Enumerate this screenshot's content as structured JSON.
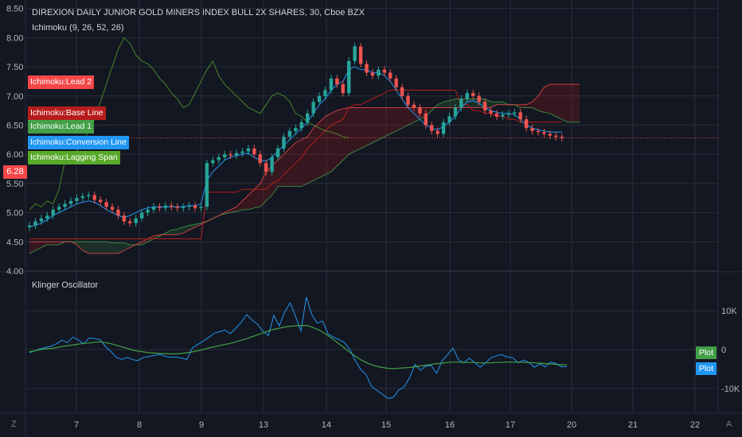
{
  "header": {
    "title": "DIREXION DAILY JUNIOR GOLD MINERS INDEX BULL 2X SHARES, 30, Cboe BZX",
    "indicator": "Ichimoku (9, 26, 52, 26)"
  },
  "legend": {
    "lead2": "Ichimoku:Lead 2",
    "base_line": "Ichimoku:Base Line",
    "lead1": "Ichimoku:Lead 1",
    "conversion_line": "Ichimoku:Conversion Line",
    "lagging_span": "Ichimoku:Lagging Span"
  },
  "last_price_tag": "6.28",
  "oscillator": {
    "title": "Klinger Oscillator",
    "plot1_label": "Plot",
    "plot2_label": "Plot"
  },
  "corners": {
    "bottom_left": "Z",
    "bottom_right": "A"
  },
  "colors": {
    "background": "#131722",
    "up": "#26a69a",
    "down": "#ef5350",
    "conversion": "#2196f3",
    "base": "#b71c1c",
    "lead1": "#43a047",
    "lead2": "#f44848",
    "lagging": "#58a92a"
  },
  "chart_data": [
    {
      "type": "candlestick",
      "title": "DIREXION DAILY JUNIOR GOLD MINERS INDEX BULL 2X SHARES, 30, Cboe BZX",
      "x_ticks": [
        "7",
        "8",
        "9",
        "13",
        "14",
        "15",
        "16",
        "17",
        "20",
        "21",
        "22"
      ],
      "y_ticks": [
        "8.50",
        "8.00",
        "7.50",
        "7.00",
        "6.50",
        "6.00",
        "5.50",
        "5.00",
        "4.50",
        "4.00"
      ],
      "ylim": [
        4.0,
        8.5
      ],
      "last_price": 6.28,
      "close": [
        4.78,
        4.85,
        4.9,
        4.95,
        5.05,
        5.1,
        5.15,
        5.2,
        5.25,
        5.28,
        5.3,
        5.22,
        5.18,
        5.1,
        5.05,
        4.95,
        4.85,
        4.82,
        4.9,
        5.0,
        5.05,
        5.1,
        5.08,
        5.12,
        5.1,
        5.08,
        5.1,
        5.12,
        5.08,
        5.1,
        5.85,
        5.9,
        5.95,
        6.0,
        5.98,
        6.02,
        6.05,
        6.1,
        6.0,
        5.85,
        5.7,
        5.95,
        6.1,
        6.3,
        6.4,
        6.45,
        6.55,
        6.7,
        6.9,
        7.0,
        7.1,
        7.3,
        7.2,
        7.05,
        7.6,
        7.85,
        7.55,
        7.4,
        7.35,
        7.45,
        7.4,
        7.3,
        7.15,
        7.0,
        6.85,
        6.8,
        6.7,
        6.5,
        6.4,
        6.35,
        6.55,
        6.65,
        6.8,
        6.95,
        7.05,
        7.0,
        6.9,
        6.75,
        6.7,
        6.65,
        6.68,
        6.7,
        6.72,
        6.6,
        6.45,
        6.4,
        6.38,
        6.35,
        6.32,
        6.3,
        6.28
      ],
      "conversion_line": [
        4.75,
        4.78,
        4.82,
        4.88,
        4.95,
        5.0,
        5.05,
        5.1,
        5.15,
        5.18,
        5.2,
        5.18,
        5.12,
        5.05,
        5.0,
        4.95,
        4.92,
        4.95,
        5.0,
        5.05,
        5.08,
        5.1,
        5.1,
        5.1,
        5.1,
        5.1,
        5.1,
        5.12,
        5.12,
        5.15,
        5.55,
        5.7,
        5.8,
        5.9,
        5.95,
        5.98,
        6.0,
        6.02,
        5.95,
        5.9,
        5.88,
        5.95,
        6.05,
        6.15,
        6.25,
        6.35,
        6.45,
        6.55,
        6.7,
        6.85,
        6.95,
        7.1,
        7.2,
        7.25,
        7.45,
        7.5,
        7.45,
        7.45,
        7.4,
        7.4,
        7.35,
        7.25,
        7.1,
        6.95,
        6.8,
        6.7,
        6.6,
        6.5,
        6.45,
        6.42,
        6.48,
        6.55,
        6.65,
        6.8,
        6.9,
        6.92,
        6.88,
        6.8,
        6.75,
        6.72,
        6.7,
        6.7,
        6.68,
        6.6,
        6.5,
        6.45,
        6.42,
        6.4,
        6.38,
        6.38,
        6.38
      ],
      "base_line": [
        4.55,
        4.55,
        4.55,
        4.55,
        4.55,
        4.55,
        4.55,
        4.55,
        4.55,
        4.55,
        4.55,
        4.55,
        4.55,
        4.55,
        4.55,
        4.55,
        4.55,
        4.55,
        4.55,
        4.55,
        4.55,
        4.55,
        4.55,
        4.55,
        4.55,
        4.55,
        4.55,
        4.55,
        4.55,
        4.55,
        5.35,
        5.35,
        5.35,
        5.35,
        5.35,
        5.35,
        5.4,
        5.4,
        5.4,
        5.4,
        5.4,
        5.5,
        5.55,
        5.65,
        5.75,
        5.85,
        5.95,
        6.1,
        6.2,
        6.3,
        6.4,
        6.5,
        6.55,
        6.6,
        6.8,
        6.85,
        6.85,
        6.9,
        6.95,
        7.0,
        7.05,
        7.1,
        7.1,
        7.1,
        7.1,
        7.1,
        7.1,
        7.1,
        7.1,
        7.1,
        7.1,
        7.1,
        7.1,
        6.85,
        6.85,
        6.75,
        6.75,
        6.7,
        6.7,
        6.65,
        6.65,
        6.6,
        6.6,
        6.55,
        6.55,
        6.55,
        6.55,
        6.55,
        6.55,
        6.55,
        6.55
      ],
      "lead1": [
        4.3,
        4.35,
        4.4,
        4.45,
        4.45,
        4.45,
        4.5,
        4.5,
        4.5,
        4.5,
        4.5,
        4.5,
        4.5,
        4.5,
        4.48,
        4.48,
        4.48,
        4.45,
        4.45,
        4.45,
        4.5,
        4.55,
        4.6,
        4.65,
        4.7,
        4.72,
        4.75,
        4.78,
        4.8,
        4.82,
        4.85,
        4.9,
        4.95,
        4.98,
        5.0,
        5.02,
        5.05,
        5.05,
        5.08,
        5.1,
        5.2,
        5.3,
        5.45,
        5.45,
        5.45,
        5.45,
        5.45,
        5.5,
        5.55,
        5.6,
        5.65,
        5.7,
        5.8,
        5.9,
        6.0,
        6.05,
        6.1,
        6.15,
        6.2,
        6.25,
        6.3,
        6.35,
        6.4,
        6.45,
        6.5,
        6.55,
        6.6,
        6.65,
        6.75,
        6.85,
        6.9,
        6.92,
        6.95,
        6.95,
        6.95,
        6.95,
        6.95,
        6.95,
        6.9,
        6.9,
        6.9,
        6.85,
        6.85,
        6.8,
        6.8,
        6.8,
        6.75,
        6.72,
        6.7,
        6.65,
        6.6,
        6.55,
        6.55,
        6.55
      ],
      "lead2": [
        4.5,
        4.5,
        4.5,
        4.5,
        4.5,
        4.5,
        4.5,
        4.5,
        4.45,
        4.35,
        4.3,
        4.3,
        4.3,
        4.3,
        4.3,
        4.3,
        4.35,
        4.4,
        4.45,
        4.5,
        4.55,
        4.6,
        4.62,
        4.62,
        4.62,
        4.62,
        4.65,
        4.7,
        4.75,
        4.8,
        4.85,
        4.9,
        4.95,
        5.0,
        5.05,
        5.1,
        5.2,
        5.3,
        5.4,
        5.5,
        5.7,
        5.8,
        5.9,
        6.0,
        6.1,
        6.2,
        6.25,
        6.3,
        6.45,
        6.55,
        6.65,
        6.7,
        6.75,
        6.78,
        6.8,
        6.8,
        6.8,
        6.8,
        6.8,
        6.8,
        6.8,
        6.8,
        6.8,
        6.8,
        6.8,
        6.8,
        6.8,
        6.8,
        6.8,
        6.8,
        6.8,
        6.8,
        6.8,
        6.8,
        6.8,
        6.8,
        6.8,
        6.8,
        6.8,
        6.85,
        6.85,
        6.85,
        6.85,
        6.85,
        6.85,
        6.9,
        7.0,
        7.15,
        7.2,
        7.2,
        7.2,
        7.2,
        7.2,
        7.2
      ],
      "lagging_span": [
        5.05,
        5.15,
        5.1,
        5.2,
        5.15,
        5.4,
        5.9,
        5.95,
        6.05,
        6.2,
        6.4,
        6.6,
        6.9,
        7.2,
        7.5,
        7.8,
        8.0,
        7.9,
        7.7,
        7.6,
        7.55,
        7.45,
        7.3,
        7.2,
        7.05,
        6.95,
        6.8,
        6.85,
        7.05,
        7.25,
        7.45,
        7.6,
        7.35,
        7.2,
        7.1,
        7.0,
        6.9,
        6.8,
        6.75,
        6.7,
        6.85,
        7.0,
        7.05,
        7.0,
        6.9,
        6.7,
        6.65,
        6.55,
        6.5,
        6.45,
        6.4,
        6.38,
        6.35,
        6.3,
        6.28
      ]
    },
    {
      "type": "line",
      "title": "Klinger Oscillator",
      "y_ticks": [
        "10K",
        "0",
        "-10K"
      ],
      "ylim": [
        -14000,
        18000
      ],
      "series": [
        {
          "name": "Plot",
          "values": [
            -800,
            -300,
            200,
            600,
            900,
            1500,
            2400,
            1800,
            3200,
            2500,
            1500,
            3000,
            2800,
            2600,
            800,
            -500,
            -2000,
            -2500,
            -2000,
            -2600,
            -2800,
            -2000,
            -1800,
            -1500,
            -1200,
            -1700,
            -2000,
            -1900,
            -2200,
            -2500,
            400,
            1300,
            2200,
            3100,
            4200,
            4600,
            5000,
            4100,
            5500,
            7000,
            9000,
            7600,
            6500,
            4700,
            3600,
            8800,
            6100,
            9600,
            12000,
            8600,
            4800,
            13500,
            9000,
            6800,
            7300,
            4000,
            3200,
            2600,
            1800,
            100,
            -2800,
            -5100,
            -6400,
            -9500,
            -10500,
            -11500,
            -12500,
            -12300,
            -10400,
            -9600,
            -7300,
            -3800,
            -5300,
            -4200,
            -4100,
            -6100,
            -2900,
            -1300,
            400,
            -2600,
            -3400,
            -2200,
            -3300,
            -4500,
            -3400,
            -2100,
            -1600,
            -1300,
            -1900,
            -2100,
            -3400,
            -2700,
            -3300,
            -4500,
            -3700,
            -4400,
            -3200,
            -3600,
            -4400,
            -4400
          ]
        },
        {
          "name": "Plot",
          "values": [
            -600,
            -300,
            0,
            200,
            300,
            500,
            800,
            1000,
            1200,
            1400,
            1600,
            1700,
            1900,
            2000,
            1800,
            1500,
            1100,
            700,
            300,
            -100,
            -400,
            -600,
            -800,
            -900,
            -1000,
            -1000,
            -1100,
            -1100,
            -1000,
            -800,
            -600,
            -300,
            0,
            400,
            700,
            1000,
            1300,
            1600,
            2000,
            2400,
            2800,
            3300,
            3800,
            4300,
            4800,
            5200,
            5500,
            5800,
            6000,
            6100,
            6200,
            6200,
            5800,
            5200,
            4500,
            3600,
            2600,
            1500,
            400,
            -700,
            -1700,
            -2600,
            -3300,
            -3900,
            -4300,
            -4600,
            -4800,
            -4900,
            -4800,
            -4700,
            -4600,
            -4400,
            -4200,
            -4000,
            -3800,
            -3600,
            -3500,
            -3300,
            -3200,
            -3200,
            -3300,
            -3300,
            -3300,
            -3400,
            -3400,
            -3400,
            -3300,
            -3300,
            -3200,
            -3200,
            -3200,
            -3300,
            -3300,
            -3400,
            -3500,
            -3600,
            -3700,
            -3800,
            -3900,
            -3900
          ]
        }
      ]
    }
  ]
}
